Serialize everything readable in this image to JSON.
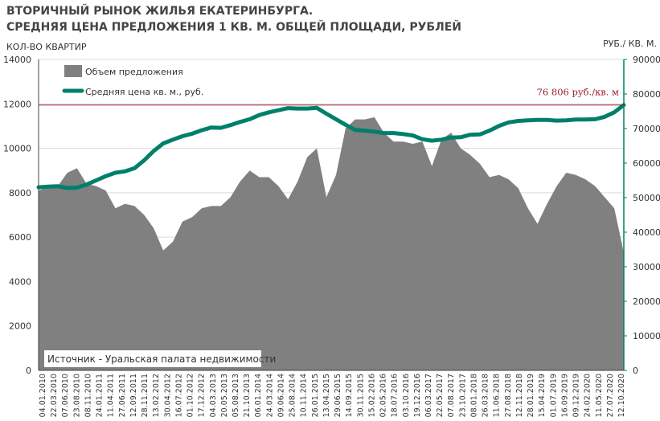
{
  "title_line1": "ВТОРИЧНЫЙ РЫНОК ЖИЛЬЯ ЕКАТЕРИНБУРГА.",
  "title_line2": "СРЕДНЯЯ ЦЕНА ПРЕДЛОЖЕНИЯ 1 КВ. М. ОБЩЕЙ ПЛОЩАДИ, РУБЛЕЙ",
  "colors": {
    "volume": "#808080",
    "price": "#00806a",
    "reference": "#9b1c31",
    "text": "#333333"
  },
  "chart_data": {
    "type": "area",
    "ylabel_left": "КОЛ-ВО КВАРТИР",
    "ylabel_right": "РУБ./ КВ. М.",
    "ylim_left": [
      0,
      14000
    ],
    "ylim_right": [
      0,
      90000
    ],
    "yticks_left": [
      "0",
      "2000",
      "4000",
      "6000",
      "8000",
      "10000",
      "12000",
      "14000"
    ],
    "yticks_right": [
      "0",
      "10000",
      "20000",
      "30000",
      "40000",
      "50000",
      "60000",
      "70000",
      "80000",
      "90000"
    ],
    "xticks": [
      "04.01.2010",
      "22.03.2010",
      "07.06.2010",
      "23.08.2010",
      "08.11.2010",
      "24.01.2011",
      "11.04.2011",
      "27.06.2011",
      "12.09.2011",
      "28.11.2011",
      "13.02.2012",
      "30.04.2012",
      "16.07.2012",
      "01.10.2012",
      "17.12.2012",
      "04.03.2013",
      "20.05.2013",
      "05.08.2013",
      "21.10.2013",
      "06.01.2014",
      "24.03.2014",
      "09.06.2014",
      "25.08.2014",
      "10.11.2014",
      "26.01.2015",
      "13.04.2015",
      "29.06.2015",
      "14.09.2015",
      "30.11.2015",
      "15.02.2016",
      "02.05.2016",
      "18.07.2016",
      "03.10.2016",
      "19.12.2016",
      "06.03.2017",
      "22.05.2017",
      "07.08.2017",
      "23.10.2017",
      "08.01.2018",
      "26.03.2018",
      "11.06.2018",
      "27.08.2018",
      "12.11.2018",
      "28.01.2019",
      "15.04.2019",
      "01.07.2019",
      "16.09.2019",
      "09.12.2019",
      "24.02.2020",
      "11.05.2020",
      "27.07.2020",
      "12.10.2020"
    ],
    "legend": [
      "Объем предложения",
      "Средняя цена кв. м., руб."
    ],
    "reference_line": {
      "value": 76806,
      "label": "76 806 руб./кв. м"
    },
    "source_note": "Источник - Уральская палата недвижимости",
    "series": [
      {
        "name": "Объем предложения",
        "axis": "left",
        "type": "area",
        "values": [
          8100,
          8250,
          8300,
          8900,
          9100,
          8400,
          8300,
          8100,
          7300,
          7500,
          7400,
          7000,
          6400,
          5400,
          5800,
          6700,
          6900,
          7300,
          7400,
          7400,
          7800,
          8500,
          9000,
          8700,
          8700,
          8300,
          7700,
          8500,
          9600,
          10000,
          7800,
          8800,
          10900,
          11300,
          11300,
          11400,
          10700,
          10300,
          10300,
          10200,
          10300,
          9200,
          10400,
          10700,
          10000,
          9700,
          9300,
          8700,
          8800,
          8600,
          8200,
          7300,
          6600,
          7500,
          8300,
          8900,
          8800,
          8600,
          8300,
          7800,
          7300,
          5300
        ]
      },
      {
        "name": "Средняя цена кв. м., руб.",
        "axis": "right",
        "type": "line",
        "values": [
          53000,
          53200,
          53300,
          52800,
          52900,
          53800,
          55000,
          56200,
          57200,
          57600,
          58500,
          60800,
          63500,
          65700,
          66800,
          67800,
          68500,
          69500,
          70300,
          70200,
          71000,
          71900,
          72700,
          73900,
          74700,
          75300,
          75900,
          75800,
          75800,
          76000,
          74300,
          72700,
          71100,
          69600,
          69400,
          69100,
          68700,
          68700,
          68400,
          68000,
          66900,
          66500,
          66800,
          67400,
          67500,
          68200,
          68300,
          69400,
          70800,
          71800,
          72200,
          72400,
          72500,
          72500,
          72300,
          72400,
          72600,
          72600,
          72700,
          73400,
          74700,
          76806
        ]
      }
    ]
  }
}
